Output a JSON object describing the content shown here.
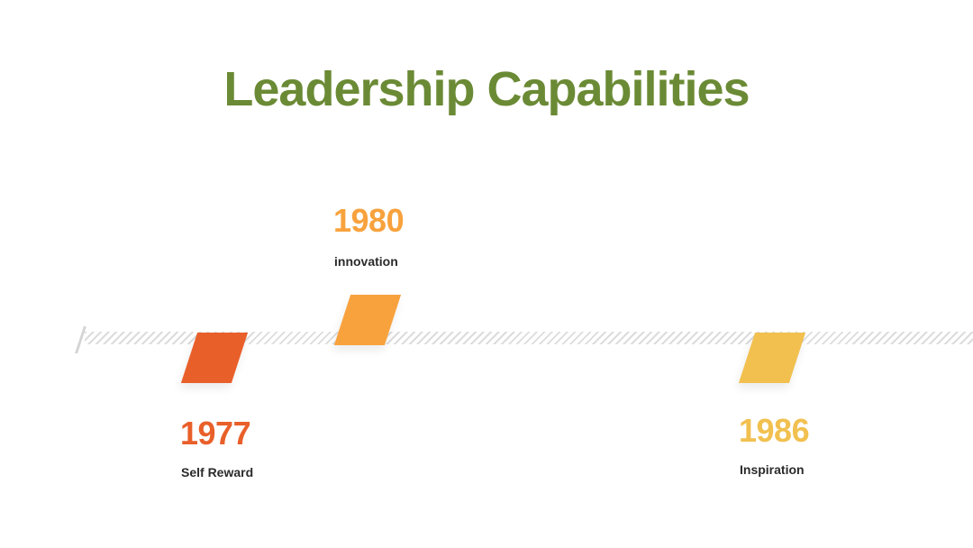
{
  "title": "Leadership Capabilities",
  "colors": {
    "title": "#6b8a35",
    "milestone_1977": "#e95f2a",
    "milestone_1980": "#f8a23d",
    "milestone_1986": "#f1c04f",
    "label_text": "#2b2b2b",
    "track": "#dcdcdc"
  },
  "milestones": [
    {
      "year": "1977",
      "label": "Self Reward",
      "position": "below"
    },
    {
      "year": "1980",
      "label": "innovation",
      "position": "above"
    },
    {
      "year": "1986",
      "label": "Inspiration",
      "position": "below"
    }
  ]
}
